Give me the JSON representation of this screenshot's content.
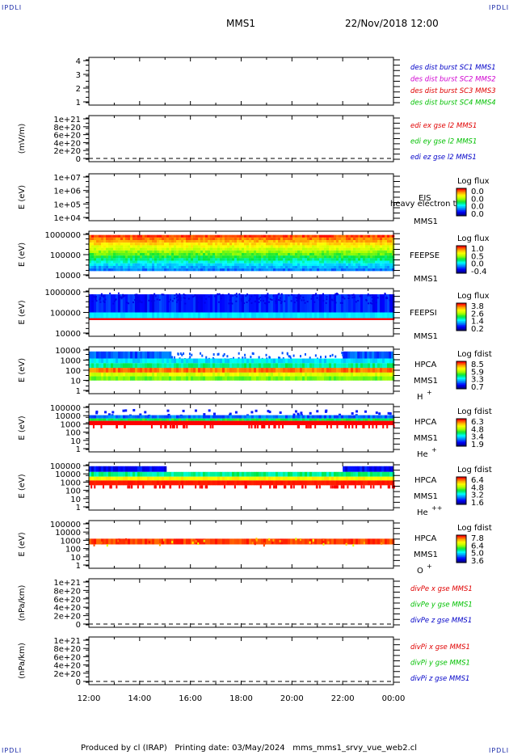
{
  "corner_label": "IPDLI",
  "header": {
    "spacecraft": "MMS1",
    "datetime": "22/Nov/2018 12:00"
  },
  "footer": {
    "produced_by": "Produced by cl (IRAP)",
    "printing_date": "Printing date: 03/May/2024",
    "script": "mms_mms1_srvy_vue_web2.cl"
  },
  "colors": {
    "blue": "#0000c8",
    "magenta": "#d000d0",
    "red": "#e00000",
    "green": "#00c000"
  },
  "chart_data": [
    {
      "type": "line",
      "id": "des",
      "yticks": [
        "1",
        "2",
        "3",
        "4"
      ],
      "ylim": [
        0.6,
        4.4
      ],
      "ylabel": "",
      "legend": [
        {
          "text": "des dist burst SC1 MMS1",
          "color": "#0000c8"
        },
        {
          "text": "des dist burst SC2 MMS2",
          "color": "#d000d0"
        },
        {
          "text": "des dist burst SC3 MMS3",
          "color": "#e00000"
        },
        {
          "text": "des dist burst SC4 MMS4",
          "color": "#00c000"
        }
      ]
    },
    {
      "type": "line",
      "id": "edi",
      "yticks": [
        "0",
        "2e+20",
        "4e+20",
        "6e+20",
        "8e+20",
        "1e+21"
      ],
      "ylim": [
        -1e+20,
        1.1e+21
      ],
      "ylabel": "(mV/m)",
      "zero_line": true,
      "legend": [
        {
          "text": "edi ex gse l2 MMS1",
          "color": "#e00000"
        },
        {
          "text": "edi ey gse l2 MMS1",
          "color": "#00c000"
        },
        {
          "text": "edi ez gse l2 MMS1",
          "color": "#0000c8"
        }
      ]
    },
    {
      "type": "heatmap",
      "id": "eis",
      "yticks": [
        "1e+04",
        "1e+05",
        "1e+06",
        "1e+07"
      ],
      "ylog": [
        4,
        7
      ],
      "ylabel": "E (eV)",
      "labels": [
        "EIS",
        "MMS1"
      ],
      "overlay_text": "heavy electron to",
      "colorbar": {
        "title": "Log flux",
        "ticks": [
          "0.0",
          "0.0",
          "0.0",
          "0.0"
        ]
      }
    },
    {
      "type": "heatmap",
      "id": "feepse",
      "yticks": [
        "10000",
        "100000",
        "1000000"
      ],
      "ylog": [
        4,
        6.15
      ],
      "ylabel": "E (eV)",
      "labels": [
        "FEEPSE",
        "MMS1"
      ],
      "colorbar": {
        "title": "Log flux",
        "ticks": [
          "1.0",
          "0.5",
          "0.0",
          "-0.4"
        ]
      }
    },
    {
      "type": "heatmap",
      "id": "feepsi",
      "yticks": [
        "10000",
        "100000",
        "1000000"
      ],
      "ylog": [
        4,
        6.15
      ],
      "ylabel": "E (eV)",
      "labels": [
        "FEEPSI",
        "MMS1"
      ],
      "colorbar": {
        "title": "Log flux",
        "ticks": [
          "3.8",
          "2.6",
          "1.4",
          "0.2"
        ]
      }
    },
    {
      "type": "heatmap",
      "id": "hpca_h",
      "yticks": [
        "1",
        "10",
        "100",
        "1000",
        "10000"
      ],
      "ylog": [
        0,
        4.5
      ],
      "ylabel": "E (eV)",
      "labels": [
        "HPCA",
        "MMS1"
      ],
      "species": "H",
      "charge": "+",
      "colorbar": {
        "title": "Log fdist",
        "ticks": [
          "8.5",
          "5.9",
          "3.3",
          "0.7"
        ]
      }
    },
    {
      "type": "heatmap",
      "id": "hpca_he",
      "yticks": [
        "1",
        "10",
        "100",
        "1000",
        "10000",
        "100000"
      ],
      "ylog": [
        0,
        5
      ],
      "ylabel": "E (eV)",
      "labels": [
        "HPCA",
        "MMS1"
      ],
      "species": "He",
      "charge": "+",
      "colorbar": {
        "title": "Log fdist",
        "ticks": [
          "6.3",
          "4.8",
          "3.4",
          "1.9"
        ]
      }
    },
    {
      "type": "heatmap",
      "id": "hpca_hepp",
      "yticks": [
        "1",
        "10",
        "100",
        "1000",
        "10000",
        "100000"
      ],
      "ylog": [
        0,
        5
      ],
      "ylabel": "E (eV)",
      "labels": [
        "HPCA",
        "MMS1"
      ],
      "species": "He",
      "charge": "++",
      "colorbar": {
        "title": "Log fdist",
        "ticks": [
          "6.4",
          "4.8",
          "3.2",
          "1.6"
        ]
      }
    },
    {
      "type": "heatmap",
      "id": "hpca_o",
      "yticks": [
        "1",
        "10",
        "100",
        "1000",
        "10000",
        "100000"
      ],
      "ylog": [
        0,
        5
      ],
      "ylabel": "E (eV)",
      "labels": [
        "HPCA",
        "MMS1"
      ],
      "species": "O",
      "charge": "+",
      "colorbar": {
        "title": "Log fdist",
        "ticks": [
          "7.8",
          "6.4",
          "5.0",
          "3.6"
        ]
      }
    },
    {
      "type": "line",
      "id": "divpe",
      "yticks": [
        "0",
        "2e+20",
        "4e+20",
        "6e+20",
        "8e+20",
        "1e+21"
      ],
      "ylim": [
        -1e+20,
        1.1e+21
      ],
      "ylabel": "(nPa/km)",
      "zero_line": true,
      "legend": [
        {
          "text": "divPe x gse MMS1",
          "color": "#e00000"
        },
        {
          "text": "divPe y gse MMS1",
          "color": "#00c000"
        },
        {
          "text": "divPe z gse MMS1",
          "color": "#0000c8"
        }
      ]
    },
    {
      "type": "line",
      "id": "divpi",
      "yticks": [
        "0",
        "2e+20",
        "4e+20",
        "6e+20",
        "8e+20",
        "1e+21"
      ],
      "ylim": [
        -1e+20,
        1.1e+21
      ],
      "ylabel": "(nPa/km)",
      "zero_line": true,
      "legend": [
        {
          "text": "divPi x gse MMS1",
          "color": "#e00000"
        },
        {
          "text": "divPi y gse MMS1",
          "color": "#00c000"
        },
        {
          "text": "divPi z gse MMS1",
          "color": "#0000c8"
        }
      ]
    }
  ],
  "xaxis": {
    "ticks": [
      "12:00",
      "14:00",
      "16:00",
      "18:00",
      "20:00",
      "22:00",
      "00:00"
    ]
  }
}
